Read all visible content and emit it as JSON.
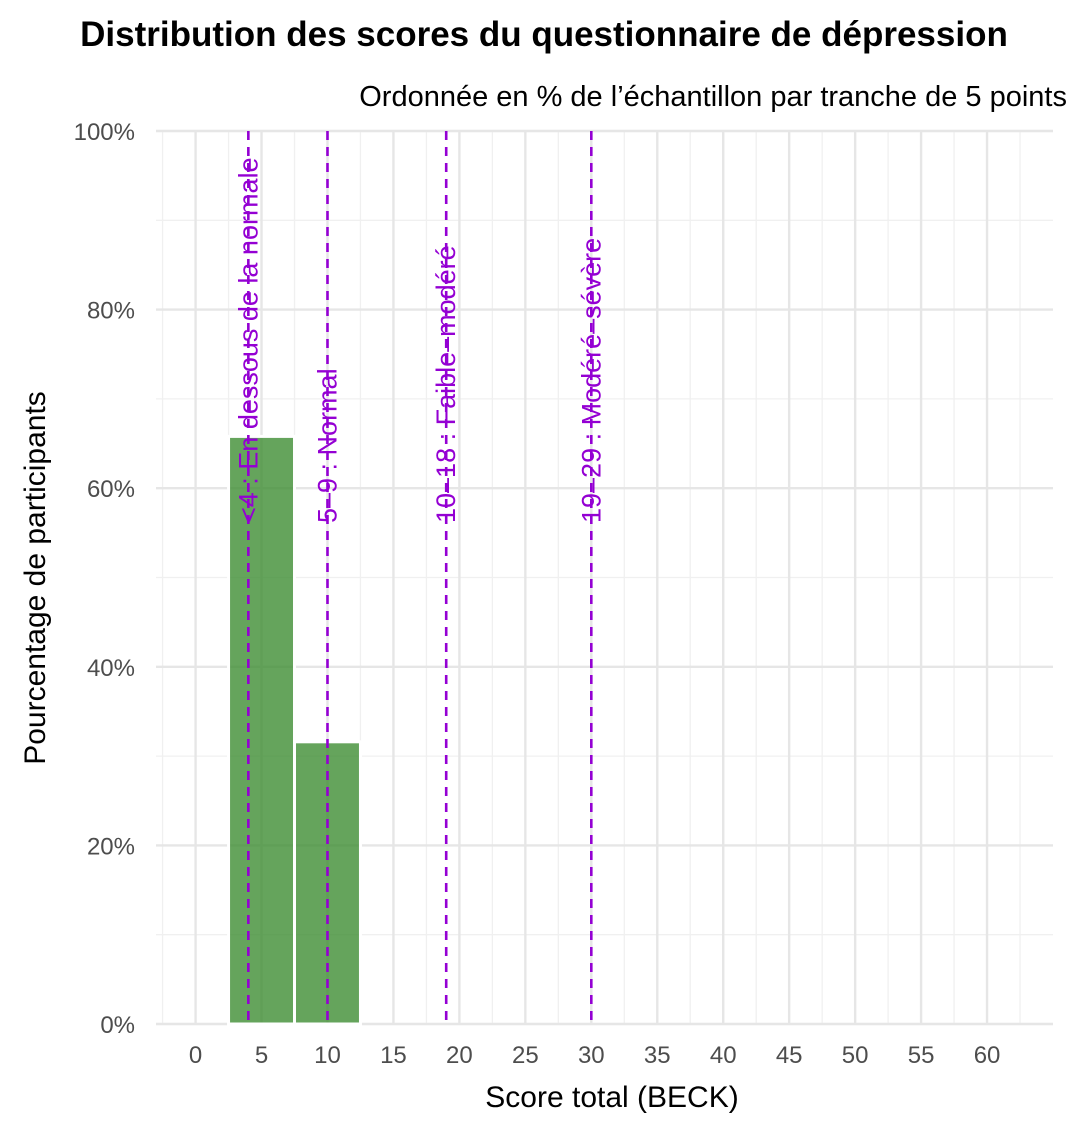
{
  "chart_data": {
    "type": "bar",
    "title": "Distribution des scores du questionnaire de dépression",
    "subtitle": "Ordonnée en % de l’échantillon par tranche de 5 points",
    "xlabel": "Score total (BECK)",
    "ylabel": "Pourcentage de participants",
    "xlim": [
      -3,
      65
    ],
    "ylim": [
      0,
      100
    ],
    "x_ticks": [
      0,
      5,
      10,
      15,
      20,
      25,
      30,
      35,
      40,
      45,
      50,
      55,
      60
    ],
    "x_tick_labels": [
      "0",
      "5",
      "10",
      "15",
      "20",
      "25",
      "30",
      "35",
      "40",
      "45",
      "50",
      "55",
      "60"
    ],
    "y_ticks": [
      0,
      20,
      40,
      60,
      80,
      100
    ],
    "y_tick_labels": [
      "0%",
      "20%",
      "40%",
      "60%",
      "80%",
      "100%"
    ],
    "bar_width": 5,
    "bars": [
      {
        "x": 5,
        "value": 65.8
      },
      {
        "x": 10,
        "value": 31.6
      }
    ],
    "bar_color": "#3a8a2e",
    "grid": true,
    "reference_lines": [
      {
        "x": 4,
        "label": "<4 : En dessous de la normale"
      },
      {
        "x": 10,
        "label": "5–9 : Normal"
      },
      {
        "x": 19,
        "label": "10–18 : Faible–modéré"
      },
      {
        "x": 30,
        "label": "19–29 : Modéré–sévère"
      }
    ],
    "reference_color": "#9400d3"
  }
}
